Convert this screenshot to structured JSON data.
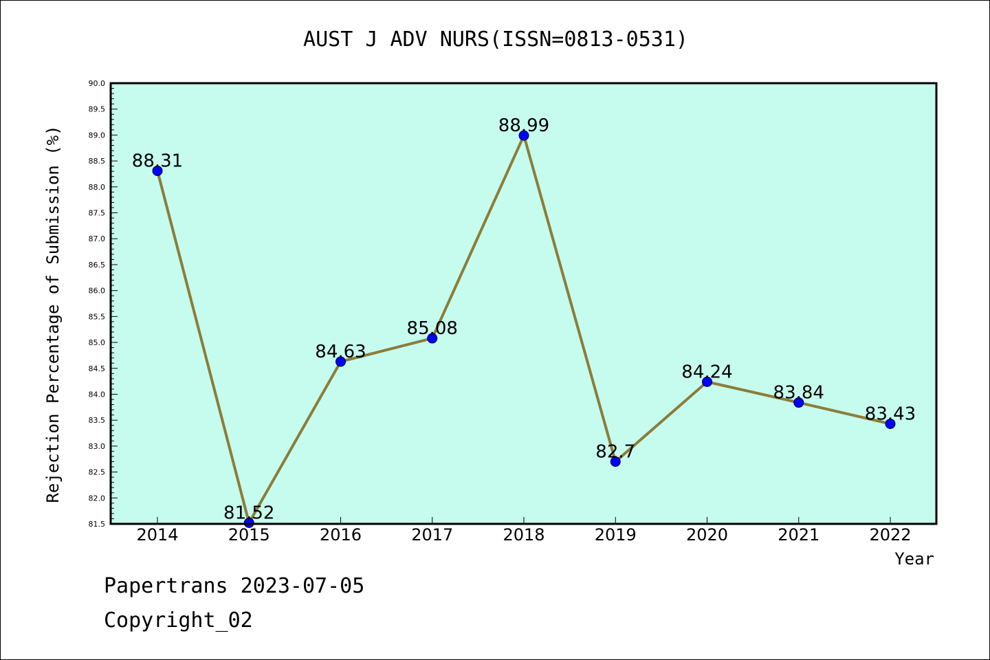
{
  "chart_data": {
    "type": "line",
    "title": "AUST J ADV NURS(ISSN=0813-0531)",
    "xlabel": "Year",
    "ylabel": "Rejection Percentage of Submission (%)",
    "categories": [
      "2014",
      "2015",
      "2016",
      "2017",
      "2018",
      "2019",
      "2020",
      "2021",
      "2022"
    ],
    "values": [
      88.31,
      81.52,
      84.63,
      85.08,
      88.99,
      82.7,
      84.24,
      83.84,
      83.43
    ],
    "data_labels": [
      "88.31",
      "81.52",
      "84.63",
      "85.08",
      "88.99",
      "82.7",
      "84.24",
      "83.84",
      "83.43"
    ],
    "ylim": [
      81.5,
      90.0
    ],
    "yticks": [
      "81.5",
      "82.0",
      "82.5",
      "83.0",
      "83.5",
      "84.0",
      "84.5",
      "85.0",
      "85.5",
      "86.0",
      "86.5",
      "87.0",
      "87.5",
      "88.0",
      "88.5",
      "89.0",
      "89.5",
      "90.0"
    ],
    "grid": false,
    "colors": {
      "plot_background": "#c6fcee",
      "line": "#8b7d3a",
      "marker": "#0000ff"
    }
  },
  "footer": {
    "line1": "Papertrans 2023-07-05",
    "line2": "Copyright_02"
  }
}
